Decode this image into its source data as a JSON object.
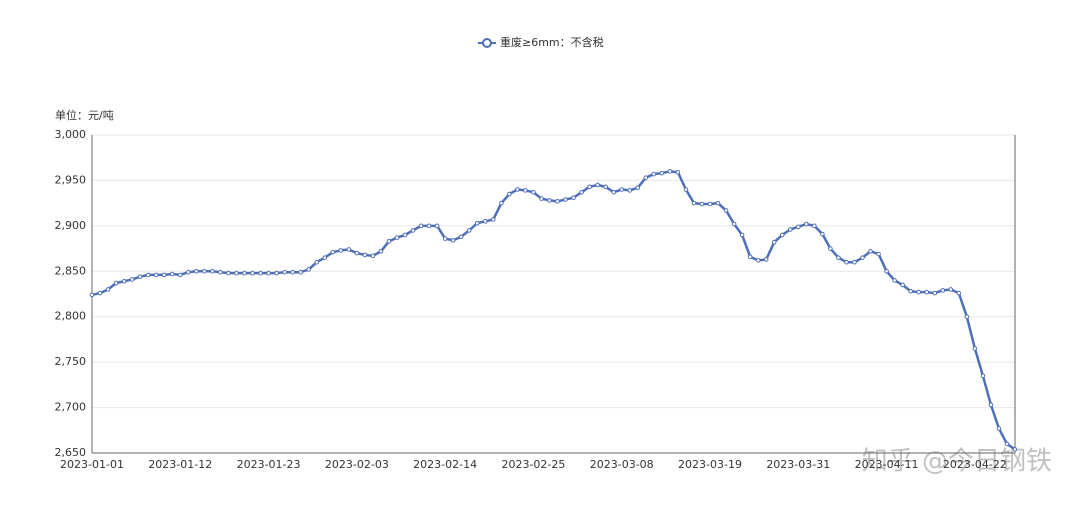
{
  "chart_data": {
    "type": "line",
    "y_axis_label": "单位：元/吨",
    "watermark": "知乎 @今日钢铁",
    "categories": [
      "2023-01-01",
      null,
      null,
      null,
      null,
      null,
      null,
      null,
      null,
      null,
      null,
      "2023-01-12",
      null,
      null,
      null,
      null,
      null,
      null,
      null,
      null,
      null,
      null,
      "2023-01-23",
      null,
      null,
      null,
      null,
      null,
      null,
      null,
      null,
      null,
      null,
      "2023-02-03",
      null,
      null,
      null,
      null,
      null,
      null,
      null,
      null,
      null,
      null,
      "2023-02-14",
      null,
      null,
      null,
      null,
      null,
      null,
      null,
      null,
      null,
      null,
      "2023-02-25",
      null,
      null,
      null,
      null,
      null,
      null,
      null,
      null,
      null,
      null,
      "2023-03-08",
      null,
      null,
      null,
      null,
      null,
      null,
      null,
      null,
      null,
      null,
      "2023-03-19",
      null,
      null,
      null,
      null,
      null,
      null,
      null,
      null,
      null,
      null,
      "2023-03-31",
      null,
      null,
      null,
      null,
      null,
      null,
      null,
      null,
      null,
      null,
      "2023-04-11",
      null,
      null,
      null,
      null,
      null,
      null,
      null,
      null,
      null,
      null,
      "2023-04-22",
      null,
      null,
      null,
      null,
      null
    ],
    "series": [
      {
        "name": "重废≥6mm：不含税",
        "color": "#4f6fb8",
        "values": [
          2824,
          2826,
          2830,
          2837,
          2839,
          2841,
          2844,
          2846,
          2846,
          2846,
          2847,
          2846,
          2849,
          2850,
          2850,
          2850,
          2849,
          2848,
          2848,
          2848,
          2848,
          2848,
          2848,
          2848,
          2849,
          2849,
          2849,
          2852,
          2860,
          2865,
          2871,
          2873,
          2874,
          2870,
          2868,
          2867,
          2872,
          2883,
          2887,
          2890,
          2895,
          2900,
          2900,
          2900,
          2886,
          2884,
          2888,
          2895,
          2903,
          2905,
          2907,
          2925,
          2935,
          2940,
          2939,
          2937,
          2930,
          2928,
          2927,
          2929,
          2931,
          2937,
          2943,
          2945,
          2943,
          2937,
          2940,
          2939,
          2942,
          2953,
          2957,
          2958,
          2960,
          2959,
          2940,
          2925,
          2924,
          2924,
          2925,
          2917,
          2902,
          2890,
          2866,
          2862,
          2863,
          2882,
          2890,
          2896,
          2899,
          2902,
          2900,
          2891,
          2875,
          2865,
          2860,
          2860,
          2865,
          2872,
          2869,
          2850,
          2840,
          2835,
          2828,
          2827,
          2827,
          2826,
          2829,
          2830,
          2826,
          2800,
          2765,
          2735,
          2703,
          2677,
          2660,
          2654
        ]
      }
    ],
    "ylim": [
      2650,
      3000
    ],
    "yticks": [
      {
        "value": 2650,
        "label": "2,650"
      },
      {
        "value": 2700,
        "label": "2,700"
      },
      {
        "value": 2750,
        "label": "2,750"
      },
      {
        "value": 2800,
        "label": "2,800"
      },
      {
        "value": 2850,
        "label": "2,850"
      },
      {
        "value": 2900,
        "label": "2,900"
      },
      {
        "value": 2950,
        "label": "2,950"
      },
      {
        "value": 3000,
        "label": "3,000"
      }
    ],
    "grid": true
  }
}
